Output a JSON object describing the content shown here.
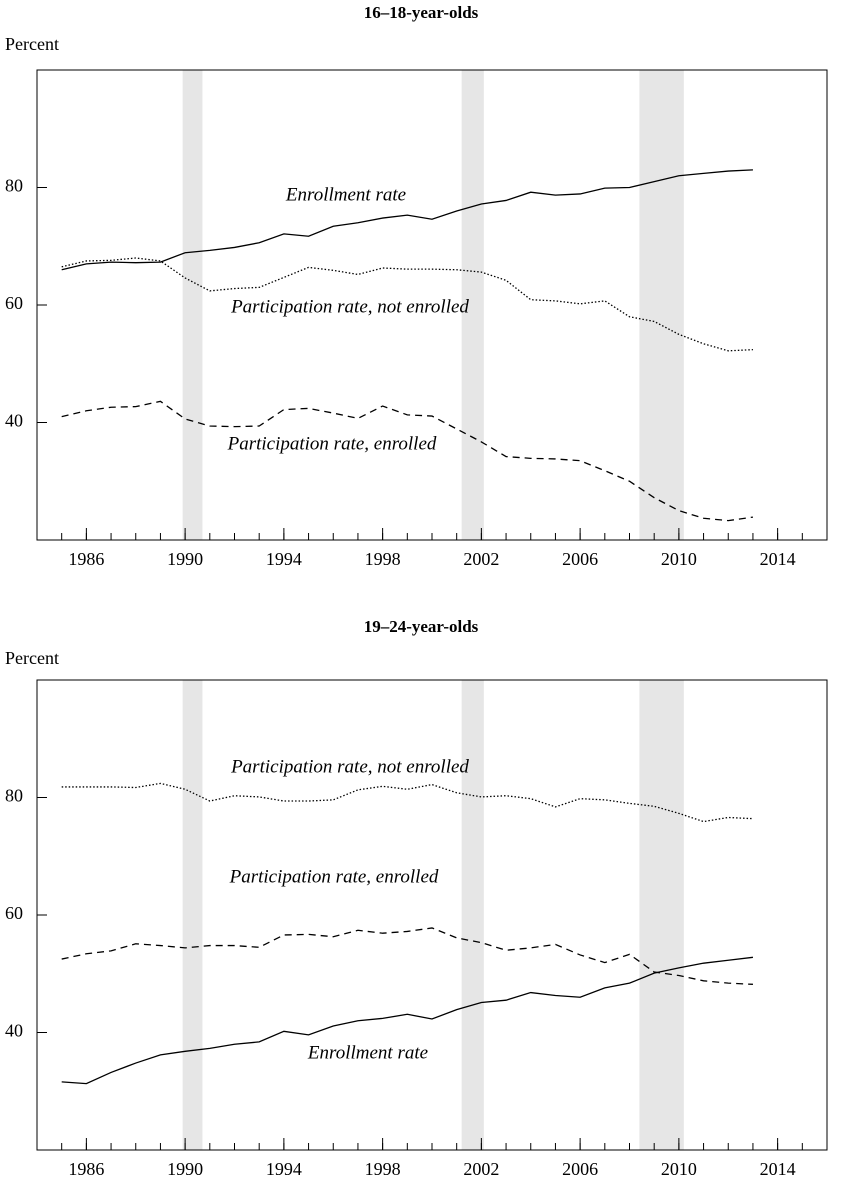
{
  "chart_data": [
    {
      "type": "line",
      "title": "16–18-year-olds",
      "y_label": "Percent",
      "xlim": [
        1984,
        2016
      ],
      "xticks": [
        1986,
        1990,
        1994,
        1998,
        2002,
        2006,
        2010,
        2014
      ],
      "ylim": [
        20,
        100
      ],
      "yticks": [
        40,
        60,
        80
      ],
      "shaded_periods": [
        [
          1989.9,
          1990.7
        ],
        [
          2001.2,
          2002.1
        ],
        [
          2008.4,
          2010.2
        ]
      ],
      "shade_color": "#e6e6e6",
      "x": [
        1985,
        1986,
        1987,
        1988,
        1989,
        1990,
        1991,
        1992,
        1993,
        1994,
        1995,
        1996,
        1997,
        1998,
        1999,
        2000,
        2001,
        2002,
        2003,
        2004,
        2005,
        2006,
        2007,
        2008,
        2009,
        2010,
        2011,
        2012,
        2013
      ],
      "series": [
        {
          "name": "Enrollment rate",
          "color": "#000000",
          "line_style": "solid",
          "values": [
            66.0,
            67.0,
            67.3,
            67.2,
            67.3,
            68.9,
            69.3,
            69.8,
            70.6,
            72.1,
            71.7,
            73.4,
            74.0,
            74.8,
            75.3,
            74.6,
            76.0,
            77.2,
            77.8,
            79.2,
            78.7,
            78.9,
            79.9,
            80.0,
            81.0,
            82.0,
            82.4,
            82.8,
            83.0
          ]
        },
        {
          "name": "Participation rate, not enrolled",
          "color": "#000000",
          "line_style": "dotted",
          "values": [
            66.5,
            67.5,
            67.6,
            68.0,
            67.5,
            64.6,
            62.4,
            62.8,
            63.0,
            64.7,
            66.4,
            65.9,
            65.2,
            66.3,
            66.1,
            66.1,
            66.0,
            65.6,
            64.2,
            60.9,
            60.7,
            60.2,
            60.7,
            58.0,
            57.2,
            55.0,
            53.4,
            52.2,
            52.4
          ]
        },
        {
          "name": "Participation rate, enrolled",
          "color": "#000000",
          "line_style": "dashed",
          "values": [
            41.0,
            42.0,
            42.6,
            42.7,
            43.6,
            40.6,
            39.4,
            39.3,
            39.4,
            42.2,
            42.4,
            41.6,
            40.7,
            42.8,
            41.3,
            41.1,
            38.9,
            36.7,
            34.2,
            33.9,
            33.8,
            33.5,
            31.8,
            30.0,
            27.2,
            25.0,
            23.7,
            23.3,
            23.9
          ]
        }
      ]
    },
    {
      "type": "line",
      "title": "19–24-year-olds",
      "y_label": "Percent",
      "xlim": [
        1984,
        2016
      ],
      "xticks": [
        1986,
        1990,
        1994,
        1998,
        2002,
        2006,
        2010,
        2014
      ],
      "ylim": [
        20,
        100
      ],
      "yticks": [
        40,
        60,
        80
      ],
      "shaded_periods": [
        [
          1989.9,
          1990.7
        ],
        [
          2001.2,
          2002.1
        ],
        [
          2008.4,
          2010.2
        ]
      ],
      "shade_color": "#e6e6e6",
      "x": [
        1985,
        1986,
        1987,
        1988,
        1989,
        1990,
        1991,
        1992,
        1993,
        1994,
        1995,
        1996,
        1997,
        1998,
        1999,
        2000,
        2001,
        2002,
        2003,
        2004,
        2005,
        2006,
        2007,
        2008,
        2009,
        2010,
        2011,
        2012,
        2013
      ],
      "series": [
        {
          "name": "Participation rate, not enrolled",
          "color": "#000000",
          "line_style": "dotted",
          "values": [
            81.8,
            81.8,
            81.8,
            81.7,
            82.4,
            81.4,
            79.4,
            80.3,
            80.1,
            79.4,
            79.4,
            79.6,
            81.3,
            81.9,
            81.4,
            82.2,
            80.8,
            80.1,
            80.3,
            79.8,
            78.4,
            79.8,
            79.6,
            79.0,
            78.5,
            77.3,
            75.9,
            76.6,
            76.4
          ]
        },
        {
          "name": "Participation rate, enrolled",
          "color": "#000000",
          "line_style": "dashed",
          "values": [
            52.5,
            53.4,
            53.9,
            55.1,
            54.8,
            54.4,
            54.8,
            54.8,
            54.5,
            56.6,
            56.7,
            56.3,
            57.4,
            56.9,
            57.2,
            57.8,
            56.1,
            55.3,
            54.0,
            54.4,
            55.0,
            53.2,
            51.9,
            53.3,
            50.3,
            49.7,
            48.8,
            48.4,
            48.2
          ]
        },
        {
          "name": "Enrollment rate",
          "color": "#000000",
          "line_style": "solid",
          "values": [
            31.6,
            31.3,
            33.2,
            34.8,
            36.2,
            36.8,
            37.3,
            38.0,
            38.4,
            40.2,
            39.6,
            41.1,
            42.0,
            42.4,
            43.1,
            42.3,
            43.9,
            45.1,
            45.5,
            46.8,
            46.3,
            46.0,
            47.6,
            48.4,
            50.1,
            51.0,
            51.8,
            52.3,
            52.8
          ]
        }
      ]
    }
  ]
}
